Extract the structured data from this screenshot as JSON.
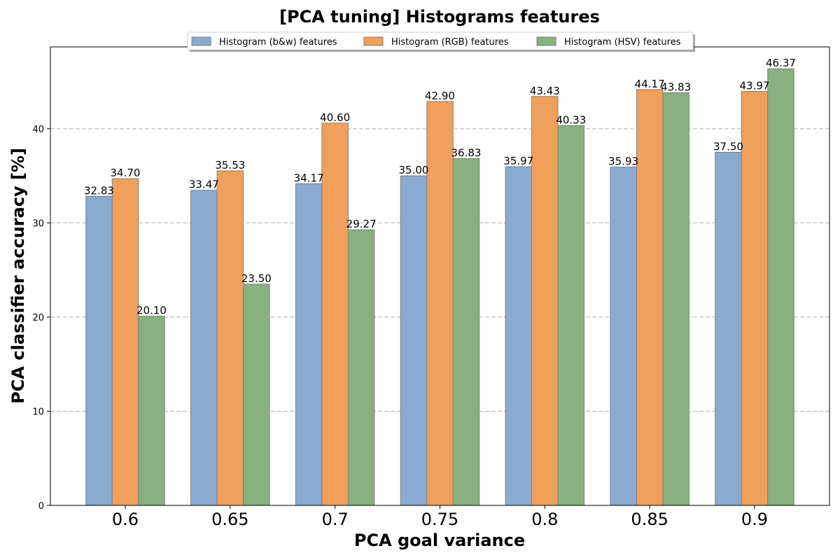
{
  "chart_data": {
    "type": "bar",
    "title": "[PCA tuning] Histograms features",
    "xlabel": "PCA goal variance",
    "ylabel": "PCA classifier accuracy [%]",
    "categories": [
      "0.6",
      "0.65",
      "0.7",
      "0.75",
      "0.8",
      "0.85",
      "0.9"
    ],
    "series": [
      {
        "name": "Histogram (b&w) features",
        "color": "#8aaacf",
        "values": [
          32.83,
          33.47,
          34.17,
          35.0,
          35.97,
          35.93,
          37.5
        ]
      },
      {
        "name": "Histogram (RGB) features",
        "color": "#f0a05a",
        "values": [
          34.7,
          35.53,
          40.6,
          42.9,
          43.43,
          44.17,
          43.97
        ]
      },
      {
        "name": "Histogram (HSV) features",
        "color": "#87b17f",
        "values": [
          20.1,
          23.5,
          29.27,
          36.83,
          40.33,
          43.83,
          46.37
        ]
      }
    ],
    "data_labels": [
      [
        "32.83",
        "33.47",
        "34.17",
        "35.00",
        "35.97",
        "35.93",
        "37.50"
      ],
      [
        "34.70",
        "35.53",
        "40.60",
        "42.90",
        "43.43",
        "44.17",
        "43.97"
      ],
      [
        "20.10",
        "23.50",
        "29.27",
        "36.83",
        "40.33",
        "43.83",
        "46.37"
      ]
    ],
    "ylim": [
      0,
      48.69
    ],
    "yticks": [
      "0",
      "10",
      "20",
      "30",
      "40"
    ],
    "grid": "y-dashed",
    "legend_placement": "top-center",
    "edge_color": "#808080"
  }
}
